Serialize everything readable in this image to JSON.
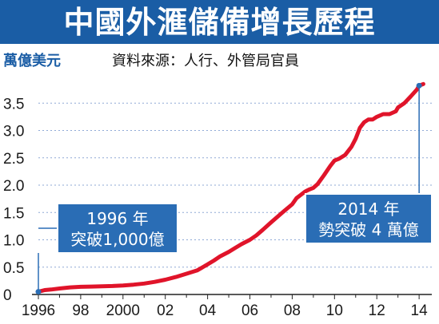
{
  "colors": {
    "title_bg": "#1a5da5",
    "line": "#e0142a",
    "callout_bg": "#2a6db5",
    "grid": "#8fa9d6",
    "axis": "#222222"
  },
  "chart_data": {
    "type": "line",
    "title": "中國外滙儲備增長歷程",
    "ylabel": "萬億美元",
    "source": "資料來源：人行、外管局官員",
    "ylim": [
      0,
      4.0
    ],
    "xlim": [
      1996,
      2014.6
    ],
    "ytick_labels": [
      "0",
      "0.5",
      "1.0",
      "1.5",
      "2.0",
      "2.5",
      "3.0",
      "3.5"
    ],
    "yticks": [
      0,
      0.5,
      1.0,
      1.5,
      2.0,
      2.5,
      3.0,
      3.5
    ],
    "xtick_labels": [
      "1996",
      "98",
      "2000",
      "02",
      "04",
      "06",
      "08",
      "10",
      "12",
      "14"
    ],
    "xticks": [
      1996,
      1998,
      2000,
      2002,
      2004,
      2006,
      2008,
      2010,
      2012,
      2014
    ],
    "grid": true,
    "x": [
      1996.0,
      1996.3,
      1996.6,
      1997.0,
      1997.5,
      1998.0,
      1998.5,
      1999.0,
      1999.5,
      2000.0,
      2000.5,
      2001.0,
      2001.5,
      2002.0,
      2002.5,
      2003.0,
      2003.5,
      2004.0,
      2004.3,
      2004.6,
      2005.0,
      2005.3,
      2005.6,
      2006.0,
      2006.3,
      2006.6,
      2007.0,
      2007.3,
      2007.6,
      2008.0,
      2008.2,
      2008.4,
      2008.6,
      2008.8,
      2009.0,
      2009.2,
      2009.5,
      2009.8,
      2010.0,
      2010.2,
      2010.5,
      2010.8,
      2011.0,
      2011.2,
      2011.4,
      2011.6,
      2011.8,
      2012.0,
      2012.3,
      2012.6,
      2012.9,
      2013.0,
      2013.3,
      2013.6,
      2013.9,
      2014.0,
      2014.2
    ],
    "values": [
      0.05,
      0.08,
      0.09,
      0.11,
      0.13,
      0.14,
      0.145,
      0.15,
      0.155,
      0.165,
      0.18,
      0.2,
      0.23,
      0.27,
      0.32,
      0.38,
      0.44,
      0.55,
      0.62,
      0.7,
      0.78,
      0.85,
      0.92,
      1.0,
      1.08,
      1.18,
      1.32,
      1.42,
      1.52,
      1.65,
      1.76,
      1.82,
      1.88,
      1.92,
      1.95,
      2.02,
      2.18,
      2.35,
      2.45,
      2.48,
      2.55,
      2.7,
      2.85,
      3.05,
      3.15,
      3.2,
      3.2,
      3.25,
      3.3,
      3.3,
      3.35,
      3.42,
      3.5,
      3.62,
      3.75,
      3.82,
      3.85
    ],
    "annotations": [
      {
        "x": 1996.0,
        "y": 0.05,
        "text_line1": "1996 年",
        "text_line2": "突破1,000億"
      },
      {
        "x": 2014.0,
        "y": 3.82,
        "text_line1": "2014 年",
        "text_line2": "勢突破 4 萬億"
      }
    ]
  }
}
